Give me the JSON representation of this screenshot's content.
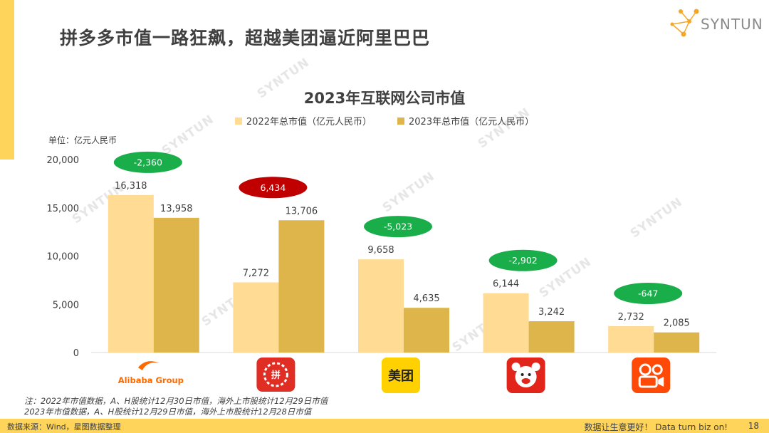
{
  "header": {
    "title": "拼多多市值一路狂飙，超越美团逼近阿里巴巴",
    "brand": "SYNTUN"
  },
  "watermark": "SYNTUN",
  "chart_data": {
    "type": "bar",
    "title": "2023年互联网公司市值",
    "unit_label": "单位：亿元人民币",
    "categories": [
      "Alibaba Group",
      "拼多多",
      "美团",
      "京东",
      "快手"
    ],
    "series": [
      {
        "name": "2022年总市值（亿元人民币）",
        "values": [
          16318,
          7272,
          9658,
          6144,
          2732
        ],
        "color": "#FFDB94"
      },
      {
        "name": "2023年总市值（亿元人民币）",
        "values": [
          13958,
          13706,
          4635,
          3242,
          2085
        ],
        "color": "#DDB54A"
      }
    ],
    "value_labels": [
      [
        "16,318",
        "7,272",
        "9,658",
        "6,144",
        "2,732"
      ],
      [
        "13,958",
        "13,706",
        "4,635",
        "3,242",
        "2,085"
      ]
    ],
    "changes": [
      {
        "label": "-2,360",
        "color": "#1AAE4B"
      },
      {
        "label": "6,434",
        "color": "#C00000"
      },
      {
        "label": "-5,023",
        "color": "#1AAE4B"
      },
      {
        "label": "-2,902",
        "color": "#1AAE4B"
      },
      {
        "label": "-647",
        "color": "#1AAE4B"
      }
    ],
    "ylim": [
      0,
      20000
    ],
    "yticks": [
      0,
      5000,
      10000,
      15000,
      20000
    ],
    "ytick_labels": [
      "0",
      "5,000",
      "10,000",
      "15,000",
      "20,000"
    ],
    "logos": [
      {
        "text": "Alibaba Group",
        "icon": "alibaba-logo",
        "color": "#FF6A00"
      },
      {
        "text": "拼",
        "icon": "pinduoduo-logo",
        "color": "#E02E24"
      },
      {
        "text": "美团",
        "icon": "meituan-logo",
        "color": "#FFD100"
      },
      {
        "text": "",
        "icon": "jd-logo",
        "color": "#E1251B"
      },
      {
        "text": "",
        "icon": "kuaishou-logo",
        "color": "#FF4906"
      }
    ],
    "legend_position": "top",
    "grid": false
  },
  "notes": {
    "line1": "注：2022年市值数据，A、H股统计12月30日市值，海外上市股统计12月29日市值",
    "line2": "2023年市值数据，A、H股统计12月29日市值，海外上市股统计12月28日市值"
  },
  "footer": {
    "source": "数据来源：Wind，星图数据整理",
    "slogan": "数据让生意更好！ Data turn biz on!",
    "page": "18"
  }
}
